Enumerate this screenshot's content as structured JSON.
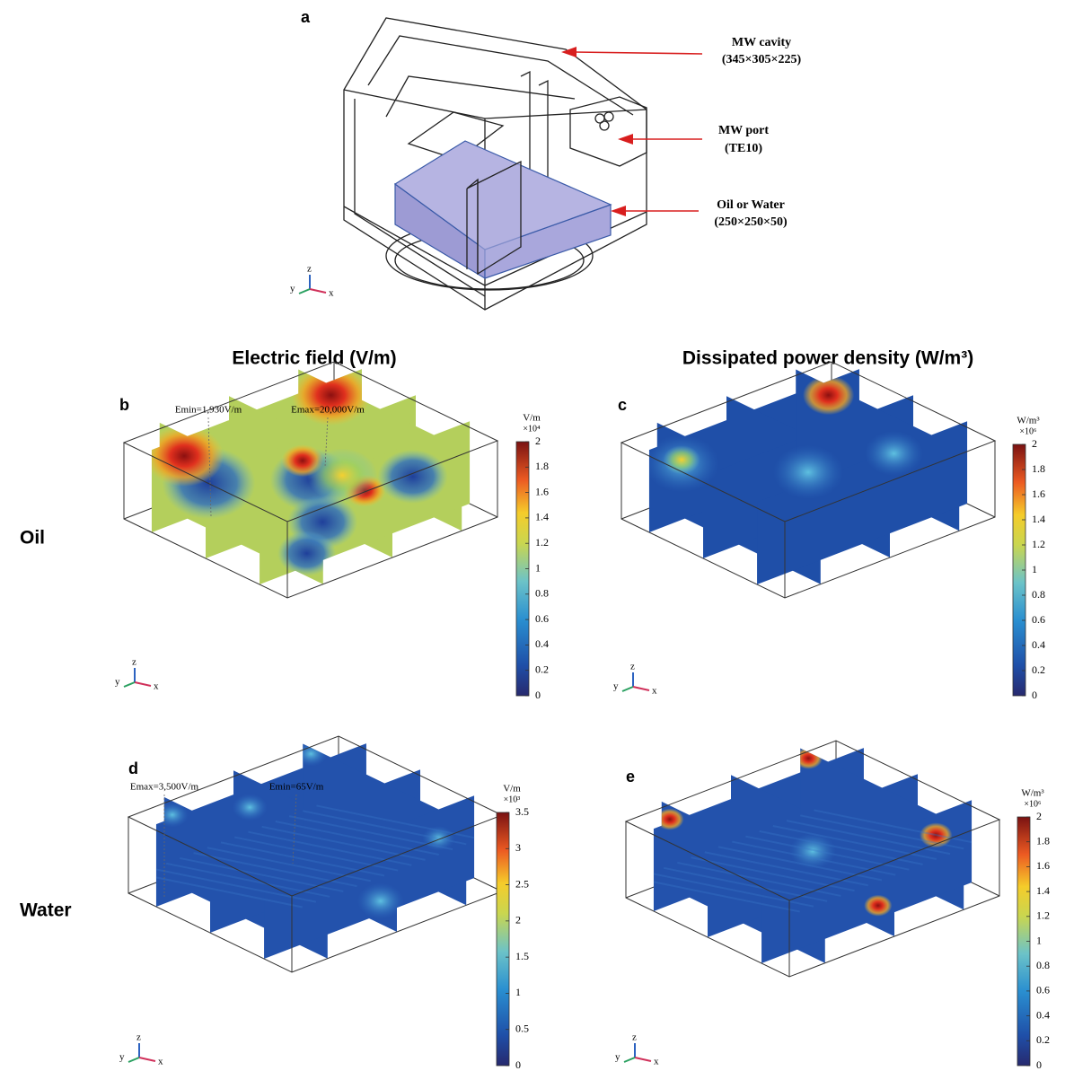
{
  "panel_a": {
    "letter": "a",
    "labels": [
      {
        "title": "MW cavity",
        "detail": "(345×305×225)"
      },
      {
        "title": "MW port",
        "detail": "(TE10)"
      },
      {
        "title": "Oil or Water",
        "detail": "(250×250×50)"
      }
    ],
    "triad": [
      "y",
      "z",
      "x"
    ]
  },
  "column_titles": [
    "Electric field (V/m)",
    "Dissipated power density (W/m³)"
  ],
  "row_labels": [
    "Oil",
    "Water"
  ],
  "panels": [
    {
      "letter": "b",
      "annotations": [
        "Emin=1,930V/m",
        "Emax=20,000V/m"
      ],
      "triad": [
        "y",
        "z",
        "x"
      ],
      "colorbar": {
        "unit": "V/m",
        "multiplier": "×10⁴",
        "lim": [
          0,
          2
        ],
        "ticks": [
          0,
          0.2,
          0.4,
          0.6,
          0.8,
          1,
          1.2,
          1.4,
          1.6,
          1.8,
          2
        ]
      }
    },
    {
      "letter": "c",
      "annotations": [],
      "triad": [
        "y",
        "z",
        "x"
      ],
      "colorbar": {
        "unit": "W/m³",
        "multiplier": "×10⁶",
        "lim": [
          0,
          2
        ],
        "ticks": [
          0,
          0.2,
          0.4,
          0.6,
          0.8,
          1,
          1.2,
          1.4,
          1.6,
          1.8,
          2
        ]
      }
    },
    {
      "letter": "d",
      "annotations": [
        "Emax=3,500V/m",
        "Emin=65V/m"
      ],
      "triad": [
        "y",
        "z",
        "x"
      ],
      "colorbar": {
        "unit": "V/m",
        "multiplier": "×10³",
        "lim": [
          0,
          3.5
        ],
        "ticks": [
          0,
          0.5,
          1,
          1.5,
          2,
          2.5,
          3,
          3.5
        ]
      }
    },
    {
      "letter": "e",
      "annotations": [],
      "triad": [
        "y",
        "z",
        "x"
      ],
      "colorbar": {
        "unit": "W/m³",
        "multiplier": "×10⁶",
        "lim": [
          0,
          2
        ],
        "ticks": [
          0,
          0.2,
          0.4,
          0.6,
          0.8,
          1,
          1.2,
          1.4,
          1.6,
          1.8,
          2
        ]
      }
    }
  ]
}
